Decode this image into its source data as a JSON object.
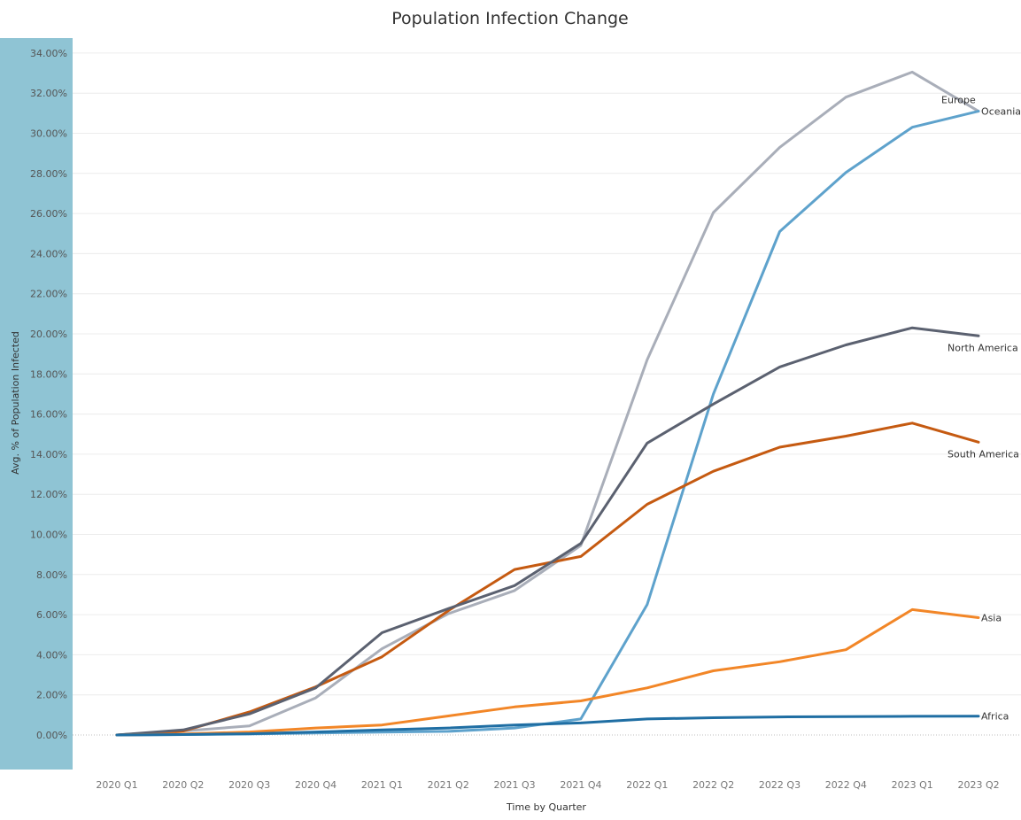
{
  "chart_data": {
    "type": "line",
    "title": "Population Infection Change",
    "xlabel": "Time by Quarter",
    "ylabel": "Avg. % of Population Infected",
    "categories": [
      "2020 Q1",
      "2020 Q2",
      "2020 Q3",
      "2020 Q4",
      "2021 Q1",
      "2021 Q2",
      "2021 Q3",
      "2021 Q4",
      "2022 Q1",
      "2022 Q2",
      "2022 Q3",
      "2022 Q4",
      "2023 Q1",
      "2023 Q2"
    ],
    "yticks": [
      "0.00%",
      "2.00%",
      "4.00%",
      "6.00%",
      "8.00%",
      "10.00%",
      "12.00%",
      "14.00%",
      "16.00%",
      "18.00%",
      "20.00%",
      "22.00%",
      "24.00%",
      "26.00%",
      "28.00%",
      "30.00%",
      "32.00%",
      "34.00%"
    ],
    "ylim": [
      -1.7,
      35.2
    ],
    "grid": true,
    "legend": "inline-end-labels",
    "y_axis_band_color": "#8fc4d4",
    "series": [
      {
        "name": "Europe",
        "color": "#a9aeb9",
        "values": [
          0.0,
          0.2,
          0.45,
          1.85,
          4.3,
          6.05,
          7.2,
          9.45,
          18.7,
          26.05,
          29.3,
          31.8,
          33.05,
          31.1
        ]
      },
      {
        "name": "Oceania",
        "color": "#5ea2cc",
        "values": [
          0.0,
          0.02,
          0.05,
          0.1,
          0.14,
          0.18,
          0.35,
          0.8,
          6.5,
          17.0,
          25.1,
          28.05,
          30.3,
          31.1
        ]
      },
      {
        "name": "North America",
        "color": "#5b6170",
        "values": [
          0.0,
          0.25,
          1.05,
          2.35,
          5.1,
          6.3,
          7.45,
          9.55,
          14.55,
          16.5,
          18.35,
          19.45,
          20.3,
          19.9
        ]
      },
      {
        "name": "South America",
        "color": "#c55a11",
        "values": [
          0.0,
          0.2,
          1.15,
          2.4,
          3.9,
          6.2,
          8.25,
          8.9,
          11.5,
          13.15,
          14.35,
          14.9,
          15.55,
          14.6
        ]
      },
      {
        "name": "Asia",
        "color": "#f28627",
        "values": [
          0.0,
          0.05,
          0.15,
          0.35,
          0.5,
          0.95,
          1.4,
          1.7,
          2.35,
          3.2,
          3.65,
          4.25,
          6.25,
          5.85
        ]
      },
      {
        "name": "Africa",
        "color": "#1f6ea3",
        "values": [
          0.0,
          0.02,
          0.06,
          0.15,
          0.25,
          0.35,
          0.5,
          0.6,
          0.8,
          0.86,
          0.9,
          0.92,
          0.93,
          0.94
        ]
      }
    ]
  }
}
